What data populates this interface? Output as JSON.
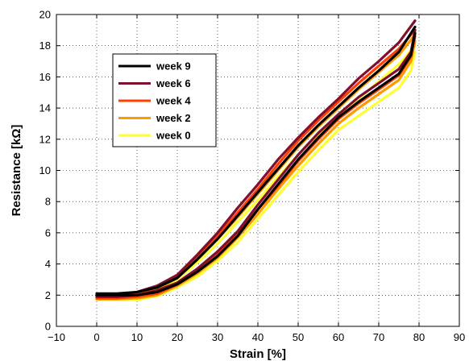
{
  "chart_data": {
    "type": "line",
    "title": "",
    "xlabel": "Strain [%]",
    "ylabel": "Resistance [kΩ]",
    "xlim": [
      -10,
      90
    ],
    "ylim": [
      0,
      20
    ],
    "xticks": [
      -10,
      0,
      10,
      20,
      30,
      40,
      50,
      60,
      70,
      80,
      90
    ],
    "yticks": [
      0,
      2,
      4,
      6,
      8,
      10,
      12,
      14,
      16,
      18,
      20
    ],
    "xtick_labels": [
      "−10",
      "0",
      "10",
      "20",
      "30",
      "40",
      "50",
      "60",
      "70",
      "80",
      "90"
    ],
    "ytick_labels": [
      "0",
      "2",
      "4",
      "6",
      "8",
      "10",
      "12",
      "14",
      "16",
      "18",
      "20"
    ],
    "grid": true,
    "legend_position": "top-left",
    "series": [
      {
        "name": "week 9",
        "color": "#000000",
        "loading": [
          [
            0,
            2.1
          ],
          [
            5,
            2.1
          ],
          [
            10,
            2.2
          ],
          [
            15,
            2.5
          ],
          [
            20,
            3.1
          ],
          [
            25,
            4.3
          ],
          [
            30,
            5.6
          ],
          [
            35,
            7.1
          ],
          [
            40,
            8.6
          ],
          [
            45,
            10.1
          ],
          [
            50,
            11.6
          ],
          [
            55,
            12.9
          ],
          [
            60,
            14.1
          ],
          [
            65,
            15.3
          ],
          [
            70,
            16.4
          ],
          [
            75,
            17.6
          ],
          [
            79,
            19.2
          ]
        ],
        "unloading": [
          [
            79,
            18.8
          ],
          [
            78,
            17.4
          ],
          [
            75,
            16.2
          ],
          [
            70,
            15.3
          ],
          [
            65,
            14.4
          ],
          [
            60,
            13.4
          ],
          [
            55,
            12.1
          ],
          [
            50,
            10.7
          ],
          [
            45,
            9.1
          ],
          [
            40,
            7.5
          ],
          [
            35,
            5.8
          ],
          [
            30,
            4.5
          ],
          [
            25,
            3.5
          ],
          [
            20,
            2.7
          ],
          [
            15,
            2.2
          ],
          [
            10,
            2.0
          ],
          [
            5,
            2.0
          ],
          [
            0,
            2.0
          ]
        ]
      },
      {
        "name": "week 6",
        "color": "#7f0f2e",
        "loading": [
          [
            0,
            2.0
          ],
          [
            5,
            2.0
          ],
          [
            10,
            2.2
          ],
          [
            15,
            2.6
          ],
          [
            20,
            3.3
          ],
          [
            25,
            4.6
          ],
          [
            30,
            6.0
          ],
          [
            35,
            7.6
          ],
          [
            40,
            9.1
          ],
          [
            45,
            10.7
          ],
          [
            50,
            12.1
          ],
          [
            55,
            13.4
          ],
          [
            60,
            14.6
          ],
          [
            65,
            15.9
          ],
          [
            70,
            17.0
          ],
          [
            75,
            18.2
          ],
          [
            79,
            19.6
          ]
        ],
        "unloading": [
          [
            79,
            19.0
          ],
          [
            78,
            17.6
          ],
          [
            75,
            16.5
          ],
          [
            70,
            15.6
          ],
          [
            65,
            14.7
          ],
          [
            60,
            13.6
          ],
          [
            55,
            12.4
          ],
          [
            50,
            11.0
          ],
          [
            45,
            9.4
          ],
          [
            40,
            7.8
          ],
          [
            35,
            6.1
          ],
          [
            30,
            4.8
          ],
          [
            25,
            3.7
          ],
          [
            20,
            2.8
          ],
          [
            15,
            2.3
          ],
          [
            10,
            2.0
          ],
          [
            5,
            1.9
          ],
          [
            0,
            1.9
          ]
        ]
      },
      {
        "name": "week 4",
        "color": "#ff4000",
        "loading": [
          [
            0,
            1.9
          ],
          [
            5,
            1.9
          ],
          [
            10,
            2.1
          ],
          [
            15,
            2.5
          ],
          [
            20,
            3.2
          ],
          [
            25,
            4.5
          ],
          [
            30,
            5.8
          ],
          [
            35,
            7.3
          ],
          [
            40,
            8.8
          ],
          [
            45,
            10.4
          ],
          [
            50,
            11.9
          ],
          [
            55,
            13.2
          ],
          [
            60,
            14.4
          ],
          [
            65,
            15.6
          ],
          [
            70,
            16.7
          ],
          [
            75,
            17.8
          ],
          [
            79,
            19.0
          ]
        ],
        "unloading": [
          [
            79,
            18.6
          ],
          [
            78,
            17.3
          ],
          [
            75,
            16.1
          ],
          [
            70,
            15.2
          ],
          [
            65,
            14.3
          ],
          [
            60,
            13.3
          ],
          [
            55,
            12.0
          ],
          [
            50,
            10.6
          ],
          [
            45,
            9.0
          ],
          [
            40,
            7.5
          ],
          [
            35,
            5.9
          ],
          [
            30,
            4.6
          ],
          [
            25,
            3.5
          ],
          [
            20,
            2.7
          ],
          [
            15,
            2.1
          ],
          [
            10,
            1.9
          ],
          [
            5,
            1.8
          ],
          [
            0,
            1.8
          ]
        ]
      },
      {
        "name": "week 2",
        "color": "#ff9900",
        "loading": [
          [
            0,
            1.85
          ],
          [
            5,
            1.85
          ],
          [
            10,
            2.0
          ],
          [
            15,
            2.4
          ],
          [
            20,
            3.1
          ],
          [
            25,
            4.3
          ],
          [
            30,
            5.6
          ],
          [
            35,
            7.0
          ],
          [
            40,
            8.5
          ],
          [
            45,
            10.0
          ],
          [
            50,
            11.5
          ],
          [
            55,
            12.8
          ],
          [
            60,
            14.0
          ],
          [
            65,
            15.2
          ],
          [
            70,
            16.3
          ],
          [
            75,
            17.4
          ],
          [
            79,
            18.7
          ]
        ],
        "unloading": [
          [
            79,
            18.3
          ],
          [
            78,
            17.0
          ],
          [
            75,
            15.8
          ],
          [
            70,
            14.9
          ],
          [
            65,
            14.0
          ],
          [
            60,
            13.0
          ],
          [
            55,
            11.7
          ],
          [
            50,
            10.3
          ],
          [
            45,
            8.8
          ],
          [
            40,
            7.2
          ],
          [
            35,
            5.7
          ],
          [
            30,
            4.4
          ],
          [
            25,
            3.4
          ],
          [
            20,
            2.6
          ],
          [
            15,
            2.0
          ],
          [
            10,
            1.8
          ],
          [
            5,
            1.75
          ],
          [
            0,
            1.75
          ]
        ]
      },
      {
        "name": "week 0",
        "color": "#ffff33",
        "loading": [
          [
            0,
            1.8
          ],
          [
            5,
            1.8
          ],
          [
            10,
            1.95
          ],
          [
            15,
            2.3
          ],
          [
            20,
            3.0
          ],
          [
            25,
            4.1
          ],
          [
            30,
            5.3
          ],
          [
            35,
            6.7
          ],
          [
            40,
            8.1
          ],
          [
            45,
            9.6
          ],
          [
            50,
            11.0
          ],
          [
            55,
            12.3
          ],
          [
            60,
            13.5
          ],
          [
            65,
            14.6
          ],
          [
            70,
            15.7
          ],
          [
            75,
            16.8
          ],
          [
            79,
            18.0
          ]
        ],
        "unloading": [
          [
            79,
            17.6
          ],
          [
            78,
            16.4
          ],
          [
            75,
            15.3
          ],
          [
            70,
            14.4
          ],
          [
            65,
            13.5
          ],
          [
            60,
            12.6
          ],
          [
            55,
            11.3
          ],
          [
            50,
            9.9
          ],
          [
            45,
            8.4
          ],
          [
            40,
            6.9
          ],
          [
            35,
            5.4
          ],
          [
            30,
            4.2
          ],
          [
            25,
            3.2
          ],
          [
            20,
            2.5
          ],
          [
            15,
            1.95
          ],
          [
            10,
            1.7
          ],
          [
            5,
            1.7
          ],
          [
            0,
            1.7
          ]
        ]
      }
    ]
  }
}
